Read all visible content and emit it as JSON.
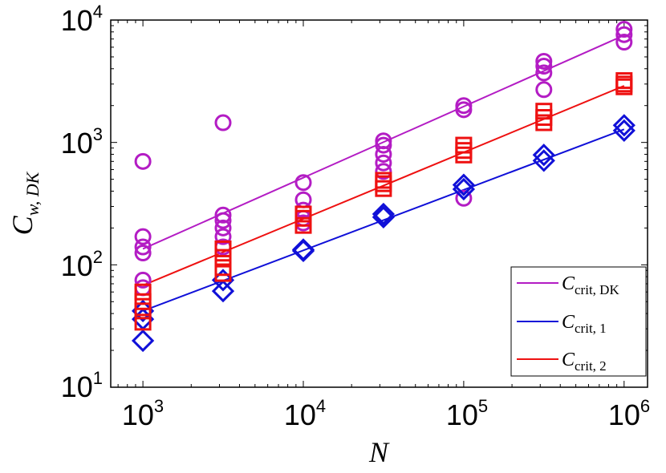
{
  "chart_data": {
    "type": "scatter",
    "title": "",
    "xlabel": "N",
    "ylabel": {
      "main": "C",
      "sub": "w, DK"
    },
    "xscale": "log",
    "yscale": "log",
    "xlim": [
      630,
      1400000
    ],
    "ylim": [
      10,
      10000
    ],
    "x_ticks": [
      {
        "value": 1000,
        "base": "10",
        "exp": "3"
      },
      {
        "value": 10000,
        "base": "10",
        "exp": "4"
      },
      {
        "value": 100000,
        "base": "10",
        "exp": "5"
      },
      {
        "value": 1000000,
        "base": "10",
        "exp": "6"
      }
    ],
    "y_ticks": [
      {
        "value": 10,
        "base": "10",
        "exp": "1"
      },
      {
        "value": 100,
        "base": "10",
        "exp": "2"
      },
      {
        "value": 1000,
        "base": "10",
        "exp": "3"
      },
      {
        "value": 10000,
        "base": "10",
        "exp": "4"
      }
    ],
    "grid": false,
    "legend_position": "bottom-right",
    "series": [
      {
        "key": "dk",
        "color": "#b31cc4",
        "marker": "circle",
        "legend": {
          "main": "C",
          "sub": "crit, DK"
        },
        "fit_line": {
          "x": [
            1000,
            1000000
          ],
          "y": [
            135,
            7500
          ]
        },
        "points": [
          {
            "x": 1000,
            "y": 700
          },
          {
            "x": 1000,
            "y": 170
          },
          {
            "x": 1000,
            "y": 140
          },
          {
            "x": 1000,
            "y": 125
          },
          {
            "x": 1000,
            "y": 75
          },
          {
            "x": 1000,
            "y": 65
          },
          {
            "x": 3160,
            "y": 1450
          },
          {
            "x": 3160,
            "y": 255
          },
          {
            "x": 3160,
            "y": 230
          },
          {
            "x": 3160,
            "y": 200
          },
          {
            "x": 3160,
            "y": 170
          },
          {
            "x": 3160,
            "y": 140
          },
          {
            "x": 10000,
            "y": 470
          },
          {
            "x": 10000,
            "y": 340
          },
          {
            "x": 10000,
            "y": 280
          },
          {
            "x": 10000,
            "y": 240
          },
          {
            "x": 10000,
            "y": 220
          },
          {
            "x": 31600,
            "y": 1030
          },
          {
            "x": 31600,
            "y": 950
          },
          {
            "x": 31600,
            "y": 800
          },
          {
            "x": 31600,
            "y": 680
          },
          {
            "x": 31600,
            "y": 580
          },
          {
            "x": 100000,
            "y": 2000
          },
          {
            "x": 100000,
            "y": 1850
          },
          {
            "x": 100000,
            "y": 350
          },
          {
            "x": 316000,
            "y": 4600
          },
          {
            "x": 316000,
            "y": 4200
          },
          {
            "x": 316000,
            "y": 3700
          },
          {
            "x": 316000,
            "y": 2700
          },
          {
            "x": 1000000,
            "y": 8400
          },
          {
            "x": 1000000,
            "y": 7600
          },
          {
            "x": 1000000,
            "y": 6600
          }
        ]
      },
      {
        "key": "c1",
        "color": "#1010d8",
        "marker": "diamond",
        "legend": {
          "main": "C",
          "sub": "crit, 1"
        },
        "fit_line": {
          "x": [
            1000,
            1000000
          ],
          "y": [
            42,
            1280
          ]
        },
        "points": [
          {
            "x": 1000,
            "y": 42
          },
          {
            "x": 1000,
            "y": 36
          },
          {
            "x": 1000,
            "y": 24
          },
          {
            "x": 3160,
            "y": 75
          },
          {
            "x": 3160,
            "y": 61
          },
          {
            "x": 10000,
            "y": 133
          },
          {
            "x": 10000,
            "y": 130
          },
          {
            "x": 31600,
            "y": 260
          },
          {
            "x": 31600,
            "y": 245
          },
          {
            "x": 100000,
            "y": 450
          },
          {
            "x": 100000,
            "y": 415
          },
          {
            "x": 316000,
            "y": 790
          },
          {
            "x": 316000,
            "y": 710
          },
          {
            "x": 1000000,
            "y": 1380
          },
          {
            "x": 1000000,
            "y": 1250
          }
        ]
      },
      {
        "key": "c2",
        "color": "#ee1111",
        "marker": "square",
        "legend": {
          "main": "C",
          "sub": "crit, 2"
        },
        "fit_line": {
          "x": [
            1000,
            1000000
          ],
          "y": [
            68,
            2900
          ]
        },
        "points": [
          {
            "x": 1000,
            "y": 60
          },
          {
            "x": 1000,
            "y": 50
          },
          {
            "x": 1000,
            "y": 42
          },
          {
            "x": 1000,
            "y": 34
          },
          {
            "x": 3160,
            "y": 135
          },
          {
            "x": 3160,
            "y": 115
          },
          {
            "x": 3160,
            "y": 95
          },
          {
            "x": 3160,
            "y": 85
          },
          {
            "x": 10000,
            "y": 260
          },
          {
            "x": 10000,
            "y": 240
          },
          {
            "x": 10000,
            "y": 210
          },
          {
            "x": 31600,
            "y": 490
          },
          {
            "x": 31600,
            "y": 460
          },
          {
            "x": 31600,
            "y": 420
          },
          {
            "x": 100000,
            "y": 950
          },
          {
            "x": 100000,
            "y": 860
          },
          {
            "x": 100000,
            "y": 790
          },
          {
            "x": 316000,
            "y": 1800
          },
          {
            "x": 316000,
            "y": 1600
          },
          {
            "x": 316000,
            "y": 1450
          },
          {
            "x": 1000000,
            "y": 3200
          },
          {
            "x": 1000000,
            "y": 3000
          },
          {
            "x": 1000000,
            "y": 2850
          }
        ]
      }
    ]
  }
}
